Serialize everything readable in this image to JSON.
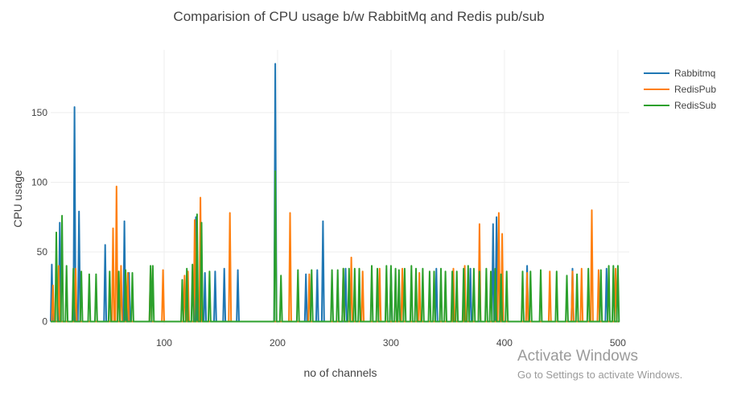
{
  "chart_data": {
    "type": "line",
    "title": "Comparision of CPU usage b/w RabbitMq and Redis pub/sub",
    "xlabel": "no of channels",
    "ylabel": "CPU usage",
    "xlim": [
      0,
      510
    ],
    "ylim": [
      -2,
      195
    ],
    "x_ticks": [
      100,
      200,
      300,
      400,
      500
    ],
    "y_ticks": [
      0,
      50,
      100,
      150
    ],
    "grid": true,
    "legend": "top-right",
    "series": [
      {
        "name": "Rabbitmq",
        "color": "#1f77b4",
        "spikes": [
          [
            1,
            41
          ],
          [
            8,
            71
          ],
          [
            21,
            154
          ],
          [
            25,
            79
          ],
          [
            48,
            55
          ],
          [
            65,
            72
          ],
          [
            69,
            35
          ],
          [
            128,
            75
          ],
          [
            136,
            35
          ],
          [
            145,
            36
          ],
          [
            153,
            38
          ],
          [
            165,
            37
          ],
          [
            198,
            185
          ],
          [
            225,
            34
          ],
          [
            235,
            37
          ],
          [
            240,
            72
          ],
          [
            260,
            38
          ],
          [
            300,
            38
          ],
          [
            340,
            38
          ],
          [
            370,
            38
          ],
          [
            390,
            70
          ],
          [
            393,
            75
          ],
          [
            420,
            40
          ],
          [
            460,
            38
          ],
          [
            490,
            38
          ]
        ]
      },
      {
        "name": "RedisPub",
        "color": "#ff7f0e",
        "spikes": [
          [
            2,
            26
          ],
          [
            7,
            40
          ],
          [
            22,
            38
          ],
          [
            55,
            67
          ],
          [
            58,
            97
          ],
          [
            62,
            40
          ],
          [
            68,
            35
          ],
          [
            88,
            38
          ],
          [
            99,
            37
          ],
          [
            118,
            33
          ],
          [
            121,
            36
          ],
          [
            127,
            73
          ],
          [
            132,
            89
          ],
          [
            158,
            78
          ],
          [
            211,
            78
          ],
          [
            228,
            34
          ],
          [
            258,
            38
          ],
          [
            265,
            46
          ],
          [
            275,
            36
          ],
          [
            290,
            38
          ],
          [
            310,
            38
          ],
          [
            325,
            35
          ],
          [
            355,
            38
          ],
          [
            365,
            40
          ],
          [
            378,
            70
          ],
          [
            395,
            78
          ],
          [
            398,
            63
          ],
          [
            420,
            35
          ],
          [
            440,
            36
          ],
          [
            460,
            36
          ],
          [
            468,
            38
          ],
          [
            477,
            80
          ],
          [
            483,
            37
          ],
          [
            498,
            38
          ]
        ]
      },
      {
        "name": "RedisSub",
        "color": "#2ca02c",
        "spikes": [
          [
            5,
            64
          ],
          [
            10,
            76
          ],
          [
            14,
            40
          ],
          [
            20,
            38
          ],
          [
            27,
            36
          ],
          [
            34,
            34
          ],
          [
            40,
            34
          ],
          [
            52,
            36
          ],
          [
            60,
            36
          ],
          [
            66,
            37
          ],
          [
            72,
            35
          ],
          [
            88,
            40
          ],
          [
            90,
            40
          ],
          [
            116,
            30
          ],
          [
            120,
            38
          ],
          [
            125,
            41
          ],
          [
            129,
            77
          ],
          [
            133,
            71
          ],
          [
            140,
            36
          ],
          [
            198,
            108
          ],
          [
            203,
            33
          ],
          [
            218,
            37
          ],
          [
            230,
            37
          ],
          [
            248,
            37
          ],
          [
            253,
            37
          ],
          [
            258,
            38
          ],
          [
            263,
            38
          ],
          [
            268,
            38
          ],
          [
            272,
            38
          ],
          [
            283,
            40
          ],
          [
            288,
            38
          ],
          [
            296,
            40
          ],
          [
            300,
            40
          ],
          [
            304,
            38
          ],
          [
            307,
            37
          ],
          [
            312,
            38
          ],
          [
            318,
            40
          ],
          [
            322,
            38
          ],
          [
            328,
            38
          ],
          [
            334,
            36
          ],
          [
            338,
            36
          ],
          [
            344,
            38
          ],
          [
            348,
            36
          ],
          [
            354,
            36
          ],
          [
            358,
            36
          ],
          [
            364,
            38
          ],
          [
            368,
            40
          ],
          [
            373,
            38
          ],
          [
            378,
            36
          ],
          [
            384,
            38
          ],
          [
            388,
            36
          ],
          [
            392,
            38
          ],
          [
            397,
            34
          ],
          [
            402,
            36
          ],
          [
            416,
            36
          ],
          [
            423,
            36
          ],
          [
            432,
            37
          ],
          [
            446,
            36
          ],
          [
            455,
            33
          ],
          [
            464,
            34
          ],
          [
            474,
            38
          ],
          [
            485,
            37
          ],
          [
            492,
            40
          ],
          [
            496,
            40
          ],
          [
            500,
            40
          ]
        ]
      }
    ]
  },
  "watermark": {
    "line1": "Activate Windows",
    "line2": "Go to Settings to activate Windows."
  }
}
